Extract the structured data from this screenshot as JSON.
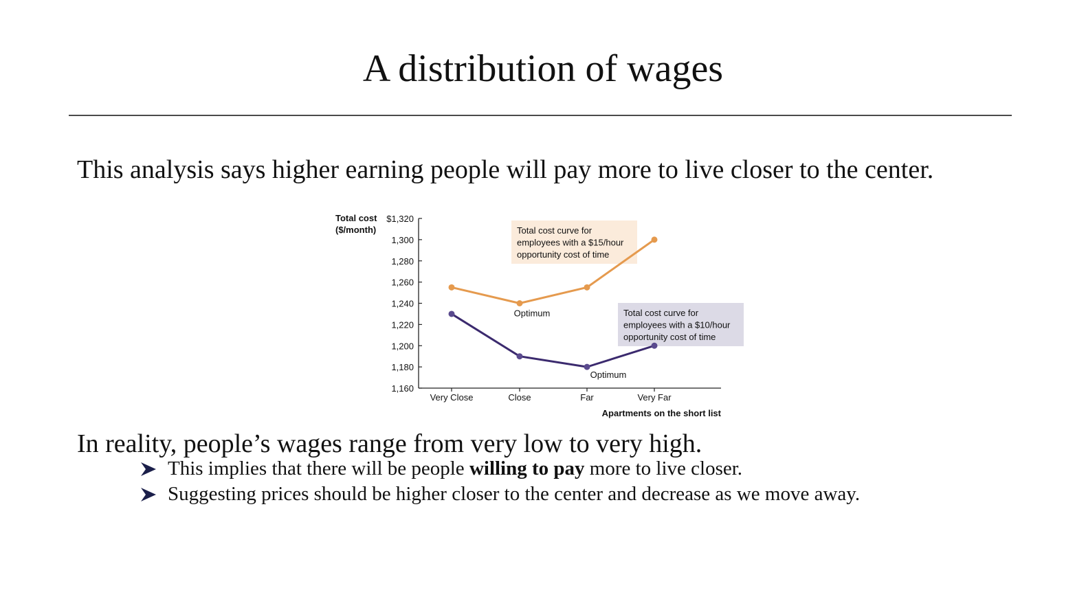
{
  "slide": {
    "title": "A distribution of wages",
    "intro": "This analysis says higher earning people will pay more to live closer to the center.",
    "reality": "In reality, people’s wages range from very low to very high.",
    "bullets": [
      {
        "before": "This implies that there will be people ",
        "bold": "willing to pay",
        "after": " more to live closer."
      },
      {
        "before": "Suggesting prices should be higher closer to the center and decrease as we move away.",
        "bold": "",
        "after": ""
      }
    ],
    "bullet_icon": "arrowhead-bullet-icon",
    "colors": {
      "bullet": "#1b1f4a",
      "text": "#111111",
      "rule": "#4a4a4a"
    }
  },
  "chart_data": {
    "type": "line",
    "categories": [
      "Very Close",
      "Close",
      "Far",
      "Very Far"
    ],
    "ylabel": [
      "Total cost",
      "($/month)"
    ],
    "xlabel": "Apartments on the short list",
    "ylim": [
      1160,
      1320
    ],
    "yticks": [
      1160,
      1180,
      1200,
      1220,
      1240,
      1260,
      1280,
      1300,
      1320
    ],
    "ytick_labels": [
      "1,160",
      "1,180",
      "1,200",
      "1,220",
      "1,240",
      "1,260",
      "1,280",
      "1,300",
      "$1,320"
    ],
    "grid": false,
    "series": [
      {
        "id": "s15",
        "values": [
          1255,
          1240,
          1255,
          1300
        ],
        "color": "#e59a4e",
        "box_color": "#fbebdb",
        "annotation": [
          "Total cost curve for",
          "employees with a $15/hour",
          "opportunity cost of time"
        ],
        "optimum_label": "Optimum",
        "optimum_index": 1
      },
      {
        "id": "s10",
        "values": [
          1230,
          1190,
          1180,
          1200
        ],
        "color": "#3b2a6e",
        "marker_color": "#5a4a8e",
        "box_color": "#dcdae6",
        "annotation": [
          "Total cost curve for",
          "employees with a $10/hour",
          "opportunity cost of time"
        ],
        "optimum_label": "Optimum",
        "optimum_index": 2
      }
    ]
  }
}
